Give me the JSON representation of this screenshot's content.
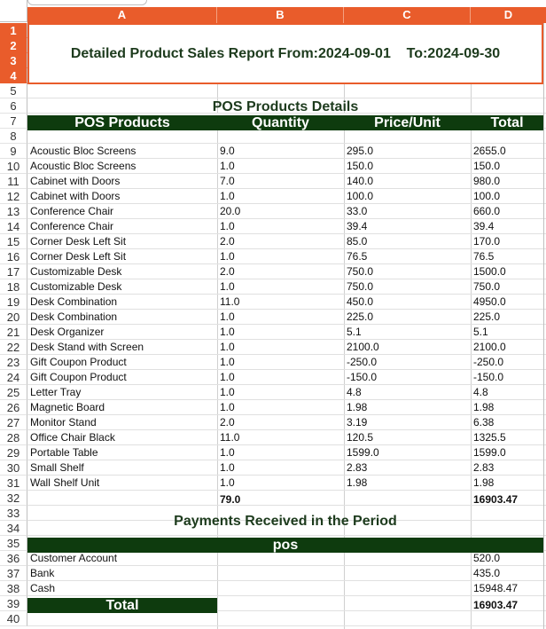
{
  "columns": [
    "A",
    "B",
    "C",
    "D"
  ],
  "row_numbers": [
    "1",
    "2",
    "3",
    "4",
    "5",
    "6",
    "7",
    "8",
    "9",
    "10",
    "11",
    "12",
    "13",
    "14",
    "15",
    "16",
    "17",
    "18",
    "19",
    "20",
    "21",
    "22",
    "23",
    "24",
    "25",
    "26",
    "27",
    "28",
    "29",
    "30",
    "31",
    "32",
    "33",
    "34",
    "35",
    "36",
    "37",
    "38",
    "39",
    "40"
  ],
  "report_title": "Detailed Product Sales Report From:2024-09-01    To:2024-09-30",
  "products_section_title": "POS Products Details",
  "products_header": [
    "POS Products",
    "Quantity",
    "Price/Unit",
    "Total"
  ],
  "products": [
    {
      "name": "Acoustic Bloc Screens",
      "qty": "9.0",
      "price": "295.0",
      "total": "2655.0"
    },
    {
      "name": "Acoustic Bloc Screens",
      "qty": "1.0",
      "price": "150.0",
      "total": "150.0"
    },
    {
      "name": "Cabinet with Doors",
      "qty": "7.0",
      "price": "140.0",
      "total": "980.0"
    },
    {
      "name": "Cabinet with Doors",
      "qty": "1.0",
      "price": "100.0",
      "total": "100.0"
    },
    {
      "name": "Conference Chair",
      "qty": "20.0",
      "price": "33.0",
      "total": "660.0"
    },
    {
      "name": "Conference Chair",
      "qty": "1.0",
      "price": "39.4",
      "total": "39.4"
    },
    {
      "name": "Corner Desk Left Sit",
      "qty": "2.0",
      "price": "85.0",
      "total": "170.0"
    },
    {
      "name": "Corner Desk Left Sit",
      "qty": "1.0",
      "price": "76.5",
      "total": "76.5"
    },
    {
      "name": "Customizable Desk",
      "qty": "2.0",
      "price": "750.0",
      "total": "1500.0"
    },
    {
      "name": "Customizable Desk",
      "qty": "1.0",
      "price": "750.0",
      "total": "750.0"
    },
    {
      "name": "Desk Combination",
      "qty": "11.0",
      "price": "450.0",
      "total": "4950.0"
    },
    {
      "name": "Desk Combination",
      "qty": "1.0",
      "price": "225.0",
      "total": "225.0"
    },
    {
      "name": "Desk Organizer",
      "qty": "1.0",
      "price": "5.1",
      "total": "5.1"
    },
    {
      "name": "Desk Stand with Screen",
      "qty": "1.0",
      "price": "2100.0",
      "total": "2100.0"
    },
    {
      "name": "Gift Coupon Product",
      "qty": "1.0",
      "price": "-250.0",
      "total": "-250.0"
    },
    {
      "name": "Gift Coupon Product",
      "qty": "1.0",
      "price": "-150.0",
      "total": "-150.0"
    },
    {
      "name": "Letter Tray",
      "qty": "1.0",
      "price": "4.8",
      "total": "4.8"
    },
    {
      "name": "Magnetic Board",
      "qty": "1.0",
      "price": "1.98",
      "total": "1.98"
    },
    {
      "name": "Monitor Stand",
      "qty": "2.0",
      "price": "3.19",
      "total": "6.38"
    },
    {
      "name": "Office Chair Black",
      "qty": "11.0",
      "price": "120.5",
      "total": "1325.5"
    },
    {
      "name": "Portable Table",
      "qty": "1.0",
      "price": "1599.0",
      "total": "1599.0"
    },
    {
      "name": "Small Shelf",
      "qty": "1.0",
      "price": "2.83",
      "total": "2.83"
    },
    {
      "name": "Wall Shelf Unit",
      "qty": "1.0",
      "price": "1.98",
      "total": "1.98"
    }
  ],
  "products_totals": {
    "qty": "79.0",
    "total": "16903.47"
  },
  "payments_section_title": "Payments Received in the Period",
  "payments_header": "pos",
  "payments": [
    {
      "method": "Customer Account",
      "amount": "520.0"
    },
    {
      "method": "Bank",
      "amount": "435.0"
    },
    {
      "method": "Cash",
      "amount": "15948.47"
    }
  ],
  "payments_total_label": "Total",
  "payments_total": "16903.47",
  "colors": {
    "header_orange": "#e95c2b",
    "dark_green": "#0e3b0e",
    "title_green": "#1d3b1d"
  }
}
